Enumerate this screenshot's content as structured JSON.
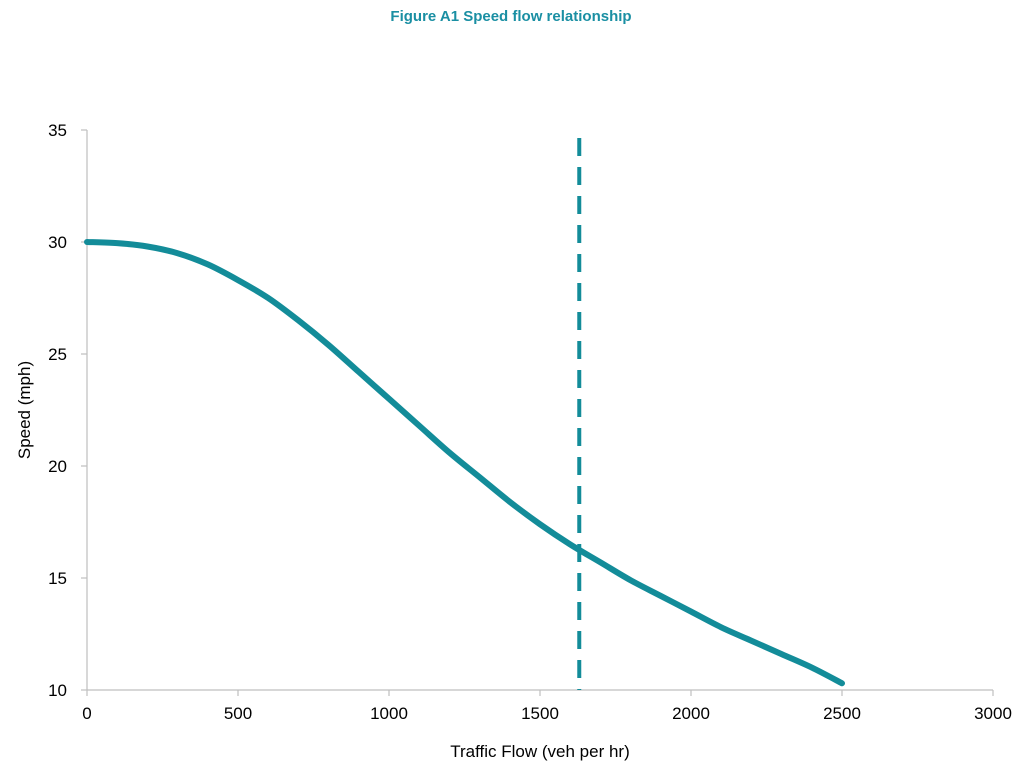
{
  "chart_data": {
    "type": "line",
    "title": "Figure A1 Speed flow relationship",
    "xlabel": "Traffic Flow (veh per hr)",
    "ylabel": "Speed (mph)",
    "xlim": [
      0,
      3000
    ],
    "ylim": [
      10,
      35
    ],
    "x_ticks": [
      0,
      500,
      1000,
      1500,
      2000,
      2500,
      3000
    ],
    "y_ticks": [
      10,
      15,
      20,
      25,
      30,
      35
    ],
    "grid": false,
    "legend": "none",
    "series": [
      {
        "color": "#138c99",
        "style": "solid",
        "x": [
          0,
          100,
          200,
          300,
          400,
          500,
          600,
          700,
          800,
          900,
          1000,
          1100,
          1200,
          1300,
          1400,
          1500,
          1600,
          1700,
          1800,
          1900,
          2000,
          2100,
          2200,
          2300,
          2400,
          2500
        ],
        "y": [
          30.0,
          29.95,
          29.8,
          29.5,
          29.0,
          28.3,
          27.5,
          26.5,
          25.4,
          24.2,
          23.0,
          21.8,
          20.6,
          19.5,
          18.4,
          17.4,
          16.5,
          15.7,
          14.9,
          14.2,
          13.5,
          12.8,
          12.2,
          11.6,
          11.0,
          10.3
        ]
      }
    ],
    "reference_lines": [
      {
        "orientation": "vertical",
        "x": 1630,
        "style": "dashed",
        "color": "#138c99"
      }
    ]
  }
}
